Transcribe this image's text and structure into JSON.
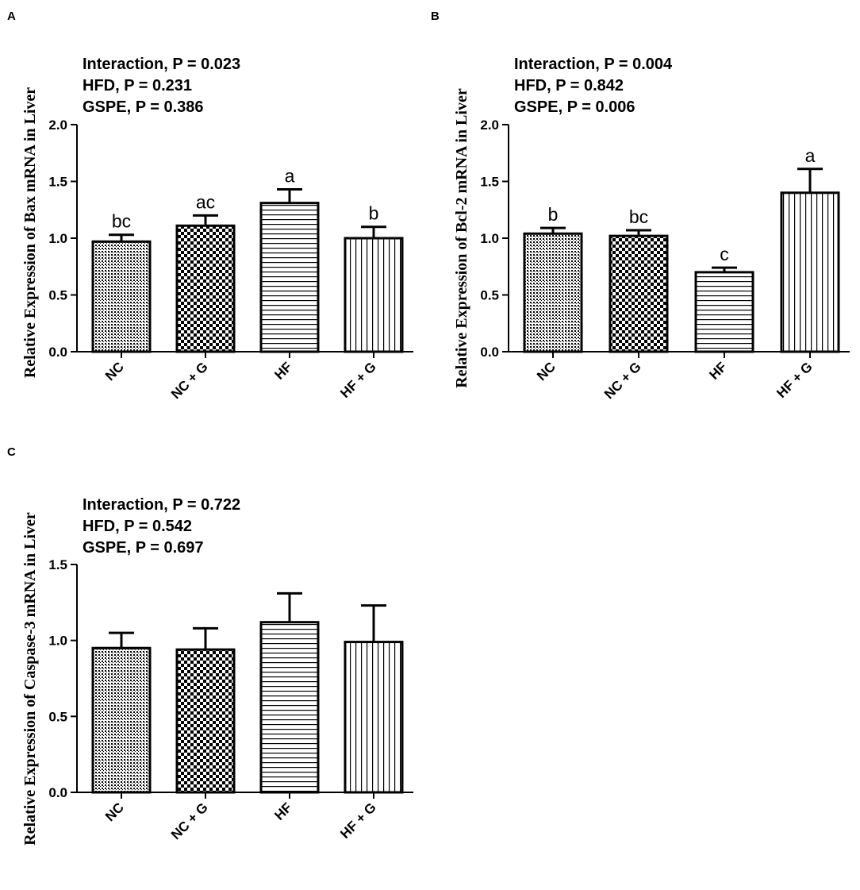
{
  "chart_data": [
    {
      "panel": "A",
      "type": "bar",
      "ylabel": "Relative Expression of Bax mRNA in Liver",
      "ylim": [
        0,
        2.0
      ],
      "yticks": [
        "0.0",
        "0.5",
        "1.0",
        "1.5",
        "2.0"
      ],
      "categories": [
        "NC",
        "NC + G",
        "HF",
        "HF + G"
      ],
      "values": [
        0.97,
        1.11,
        1.31,
        1.0
      ],
      "errors": [
        0.06,
        0.09,
        0.12,
        0.1
      ],
      "sig_labels": [
        "bc",
        "ac",
        "a",
        "b"
      ],
      "stats": [
        "Interaction, P = 0.023",
        "HFD, P = 0.231",
        "GSPE, P = 0.386"
      ]
    },
    {
      "panel": "B",
      "type": "bar",
      "ylabel": "Relative Expression of Bcl-2 mRNA in Liver",
      "ylim": [
        0,
        2.0
      ],
      "yticks": [
        "0.0",
        "0.5",
        "1.0",
        "1.5",
        "2.0"
      ],
      "categories": [
        "NC",
        "NC + G",
        "HF",
        "HF + G"
      ],
      "values": [
        1.04,
        1.02,
        0.7,
        1.4
      ],
      "errors": [
        0.05,
        0.05,
        0.04,
        0.21
      ],
      "sig_labels": [
        "b",
        "bc",
        "c",
        "a"
      ],
      "stats": [
        "Interaction, P = 0.004",
        "HFD, P = 0.842",
        "GSPE, P = 0.006"
      ]
    },
    {
      "panel": "C",
      "type": "bar",
      "ylabel": "Relative Expression of Caspase-3 mRNA in Liver",
      "ylim": [
        0,
        1.5
      ],
      "yticks": [
        "0.0",
        "0.5",
        "1.0",
        "1.5"
      ],
      "categories": [
        "NC",
        "NC + G",
        "HF",
        "HF + G"
      ],
      "values": [
        0.95,
        0.94,
        1.12,
        0.99
      ],
      "errors": [
        0.1,
        0.14,
        0.19,
        0.24
      ],
      "sig_labels": [],
      "stats": [
        "Interaction, P = 0.722",
        "HFD, P = 0.542",
        "GSPE, P = 0.697"
      ]
    }
  ]
}
